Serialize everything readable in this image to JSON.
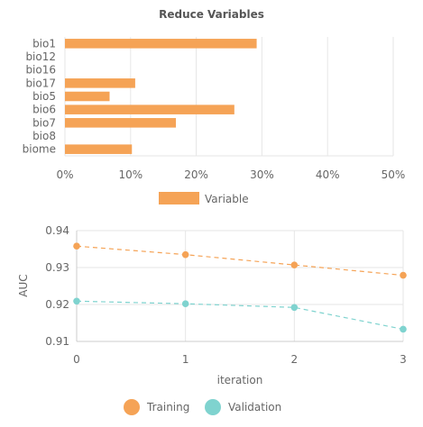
{
  "colors": {
    "training": "#f5a356",
    "validation": "#7fd3cf",
    "grid": "#e6e6e6",
    "axis_text": "#666666",
    "title": "#555555"
  },
  "chart_data": [
    {
      "type": "bar",
      "orientation": "horizontal",
      "title": "Reduce Variables",
      "categories": [
        "bio1",
        "bio12",
        "bio16",
        "bio17",
        "bio5",
        "bio6",
        "bio7",
        "bio8",
        "biome"
      ],
      "series": [
        {
          "name": "Variable",
          "values": [
            29.2,
            0,
            0,
            10.7,
            6.8,
            25.8,
            16.9,
            0,
            10.2
          ]
        }
      ],
      "xlim": [
        0,
        50
      ],
      "xticks": [
        "0%",
        "10%",
        "20%",
        "30%",
        "40%",
        "50%"
      ],
      "grid": true,
      "legend_position": "bottom"
    },
    {
      "type": "line",
      "x": [
        0,
        1,
        2,
        3
      ],
      "xlabel": "iteration",
      "ylabel": "AUC",
      "xticks": [
        "0",
        "1",
        "2",
        "3"
      ],
      "yticks": [
        "0.91",
        "0.92",
        "0.93",
        "0.94"
      ],
      "ylim": [
        0.91,
        0.94
      ],
      "series": [
        {
          "name": "Training",
          "values": [
            0.9358,
            0.9335,
            0.9307,
            0.9279
          ]
        },
        {
          "name": "Validation",
          "values": [
            0.9209,
            0.9202,
            0.9192,
            0.9133
          ]
        }
      ],
      "grid": true,
      "legend_position": "bottom"
    }
  ]
}
